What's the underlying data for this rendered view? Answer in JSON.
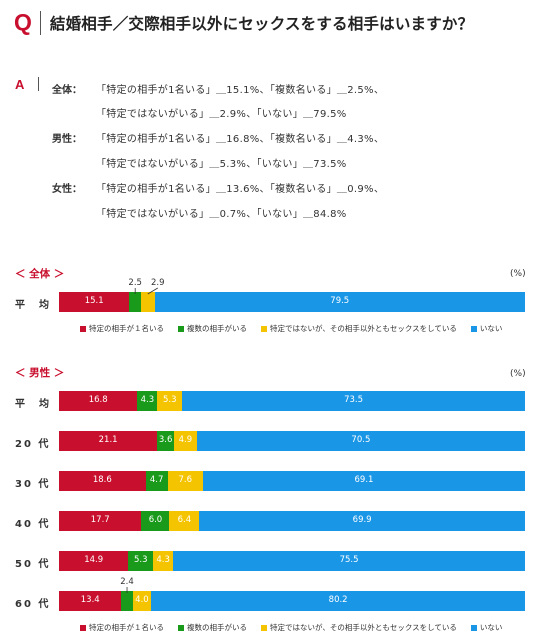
{
  "question": {
    "letter": "Q",
    "text": "結婚相手／交際相手以外にセックスをする相手はいますか？"
  },
  "answer": {
    "letter": "A",
    "groups": [
      {
        "label": "全体：",
        "line1": "「特定の相手が1名いる」＿15.1%、「複数名いる」＿2.5%、",
        "line2": "「特定ではないがいる」＿2.9%、「いない」＿79.5%"
      },
      {
        "label": "男性：",
        "line1": "「特定の相手が1名いる」＿16.8%、「複数名いる」＿4.3%、",
        "line2": "「特定ではないがいる」＿5.3%、「いない」＿73.5%"
      },
      {
        "label": "女性：",
        "line1": "「特定の相手が1名いる」＿13.6%、「複数名いる」＿0.9%、",
        "line2": "「特定ではないがいる」＿0.7%、「いない」＿84.8%"
      }
    ]
  },
  "colors": {
    "one_partner": "#c8102e",
    "multiple": "#1a9a1a",
    "unspecified": "#f5c400",
    "none": "#1a96e6",
    "accent": "#c8102e"
  },
  "legend": {
    "one_partner": "特定の相手が１名いる",
    "multiple": "複数の相手がいる",
    "unspecified": "特定ではないが、その相手以外ともセックスをしている",
    "none": "いない"
  },
  "chart_data": [
    {
      "type": "bar",
      "title": "＜ 全体 ＞",
      "unit": "(%)",
      "orientation": "horizontal-stacked",
      "categories": [
        "平　均"
      ],
      "series": [
        {
          "name": "特定の相手が１名いる",
          "values": [
            15.1
          ]
        },
        {
          "name": "複数の相手がいる",
          "values": [
            2.5
          ]
        },
        {
          "name": "特定ではないが、その相手以外ともセックスをしている",
          "values": [
            2.9
          ]
        },
        {
          "name": "いない",
          "values": [
            79.5
          ]
        }
      ]
    },
    {
      "type": "bar",
      "title": "＜ 男性 ＞",
      "unit": "(%)",
      "orientation": "horizontal-stacked",
      "categories": [
        "平　均",
        "20 代",
        "30 代",
        "40 代",
        "50 代",
        "60 代"
      ],
      "series": [
        {
          "name": "特定の相手が１名いる",
          "values": [
            16.8,
            21.1,
            18.6,
            17.7,
            14.9,
            13.4
          ]
        },
        {
          "name": "複数の相手がいる",
          "values": [
            4.3,
            3.6,
            4.7,
            6.0,
            5.3,
            2.4
          ]
        },
        {
          "name": "特定ではないが、その相手以外ともセックスをしている",
          "values": [
            5.3,
            4.9,
            7.6,
            6.4,
            4.3,
            4.0
          ]
        },
        {
          "name": "いない",
          "values": [
            73.5,
            70.5,
            69.1,
            69.9,
            75.5,
            80.2
          ]
        }
      ]
    }
  ]
}
